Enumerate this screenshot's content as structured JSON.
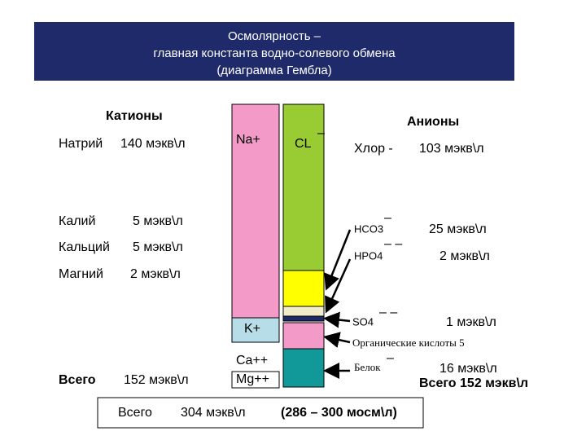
{
  "title": [
    "Осмолярность –",
    "главная константа водно-солевого обмена",
    "(диаграмма Гембла)"
  ],
  "cations": {
    "header": "Катионы",
    "items": [
      {
        "name": "Натрий",
        "amount": "140 мэкв\\л"
      },
      {
        "name": "Калий",
        "amount": "5 мэкв\\л"
      },
      {
        "name": "Кальций",
        "amount": "5 мэкв\\л"
      },
      {
        "name": "Магний",
        "amount": "2 мэкв\\л"
      }
    ],
    "total": {
      "label": "Всего",
      "amount": "152 мэкв\\л"
    }
  },
  "columns": {
    "na": "Na+",
    "k": "K+",
    "ca": "Ca++",
    "mg": "Mg++",
    "cl": "CL",
    "cl_charge": "–"
  },
  "anions": {
    "header": "Анионы",
    "items": [
      {
        "name": "Хлор -",
        "amount": "103 мэкв\\л"
      },
      {
        "name": "HCO3",
        "charge": "–",
        "amount": "25 мэкв\\л"
      },
      {
        "name": "HPO4",
        "charge": "– –",
        "amount": "2 мэкв\\л"
      },
      {
        "name": "SO4",
        "charge": "– –",
        "amount": "1 мэкв\\л"
      },
      {
        "name": "Органические кислоты  5"
      },
      {
        "name": "Белок",
        "charge": "–",
        "amount": "16 мэкв\\л"
      }
    ],
    "total": "Всего  152 мэкв\\л"
  },
  "footer": {
    "label": "Всего",
    "amount": "304 мэкв\\л",
    "osm": "(286 – 300 мосм\\л)"
  }
}
